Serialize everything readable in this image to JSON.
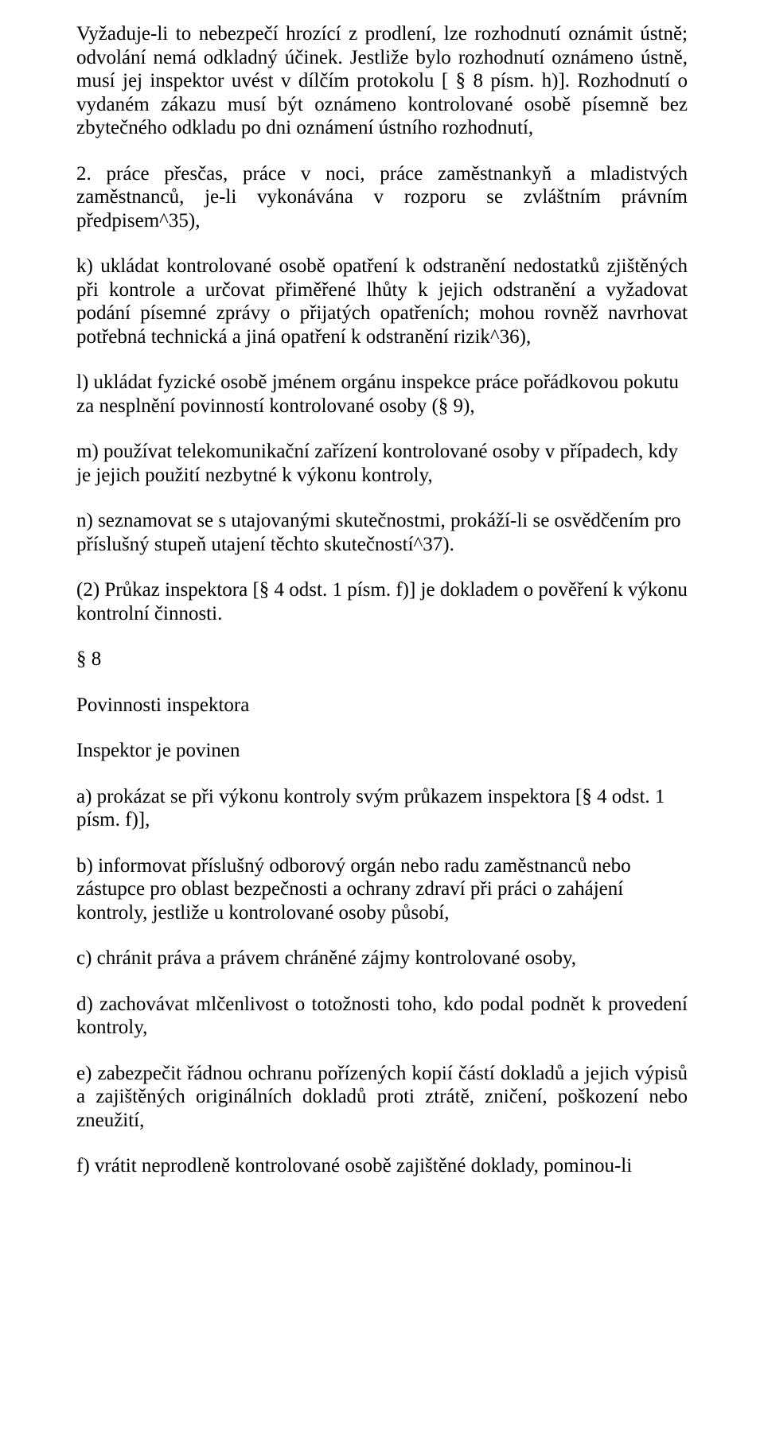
{
  "doc": {
    "p1": "Vyžaduje-li to nebezpečí hrozící z prodlení, lze rozhodnutí oznámit ústně; odvolání nemá odkladný účinek. Jestliže bylo rozhodnutí oznámeno ústně, musí jej inspektor uvést v dílčím protokolu [ § 8 písm. h)]. Rozhodnutí o vydaném zákazu musí být oznámeno kontrolované osobě písemně bez zbytečného odkladu po dni oznámení ústního rozhodnutí,",
    "p2": "2. práce přesčas, práce v noci, práce zaměstnankyň a mladistvých zaměstnanců, je-li vykonávána v rozporu se zvláštním právním předpisem^35),",
    "p3": "k) ukládat kontrolované osobě opatření k odstranění nedostatků zjištěných při kontrole a určovat přiměřené lhůty k jejich odstranění a vyžadovat podání písemné zprávy o přijatých opatřeních; mohou rovněž navrhovat potřebná technická a jiná opatření k odstranění rizik^36),",
    "p4": "l) ukládat fyzické osobě jménem orgánu inspekce práce pořádkovou pokutu za nesplnění povinností kontrolované osoby (§ 9),",
    "p5": "m) používat telekomunikační zařízení kontrolované osoby v případech, kdy je jejich použití nezbytné k výkonu kontroly,",
    "p6": "n) seznamovat se s utajovanými skutečnostmi, prokáží-li se osvědčením pro příslušný stupeň utajení těchto skutečností^37).",
    "p7": "(2) Průkaz inspektora [§ 4 odst. 1 písm. f)] je dokladem o pověření k výkonu kontrolní činnosti.",
    "p8": "§ 8",
    "p9": "Povinnosti inspektora",
    "p10": "Inspektor je povinen",
    "p11": "a) prokázat se při výkonu kontroly svým průkazem inspektora [§ 4 odst. 1 písm. f)],",
    "p12": "b) informovat příslušný odborový orgán nebo radu zaměstnanců nebo zástupce pro oblast bezpečnosti a ochrany zdraví při práci o zahájení kontroly, jestliže u kontrolované osoby působí,",
    "p13": "c) chránit práva a právem chráněné zájmy kontrolované osoby,",
    "p14": "d) zachovávat mlčenlivost o totožnosti toho, kdo podal podnět k provedení kontroly,",
    "p15": "e) zabezpečit řádnou ochranu pořízených kopií částí dokladů a jejich výpisů a zajištěných originálních dokladů proti ztrátě, zničení, poškození nebo zneužití,",
    "p16": "f) vrátit neprodleně kontrolované osobě zajištěné doklady, pominou-li"
  }
}
